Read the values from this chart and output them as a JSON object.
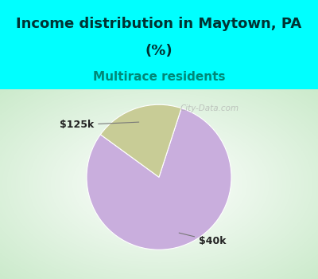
{
  "title_line1": "Income distribution in Maytown, PA",
  "title_line2": "(%)",
  "subtitle": "Multirace residents",
  "title_fontsize": 13,
  "subtitle_fontsize": 11,
  "title_color": "#003333",
  "subtitle_color": "#008877",
  "top_bg_color": "#00FFFF",
  "slices": [
    80.0,
    20.0
  ],
  "slice_colors": [
    "#c9aedd",
    "#c8cc96"
  ],
  "slice_labels": [
    "$40k",
    "$125k"
  ],
  "watermark": "City-Data.com",
  "startangle": 72,
  "label_fontsize": 9,
  "border_color": "#00FFFF",
  "chart_panel_bg": "#e8f5e8"
}
